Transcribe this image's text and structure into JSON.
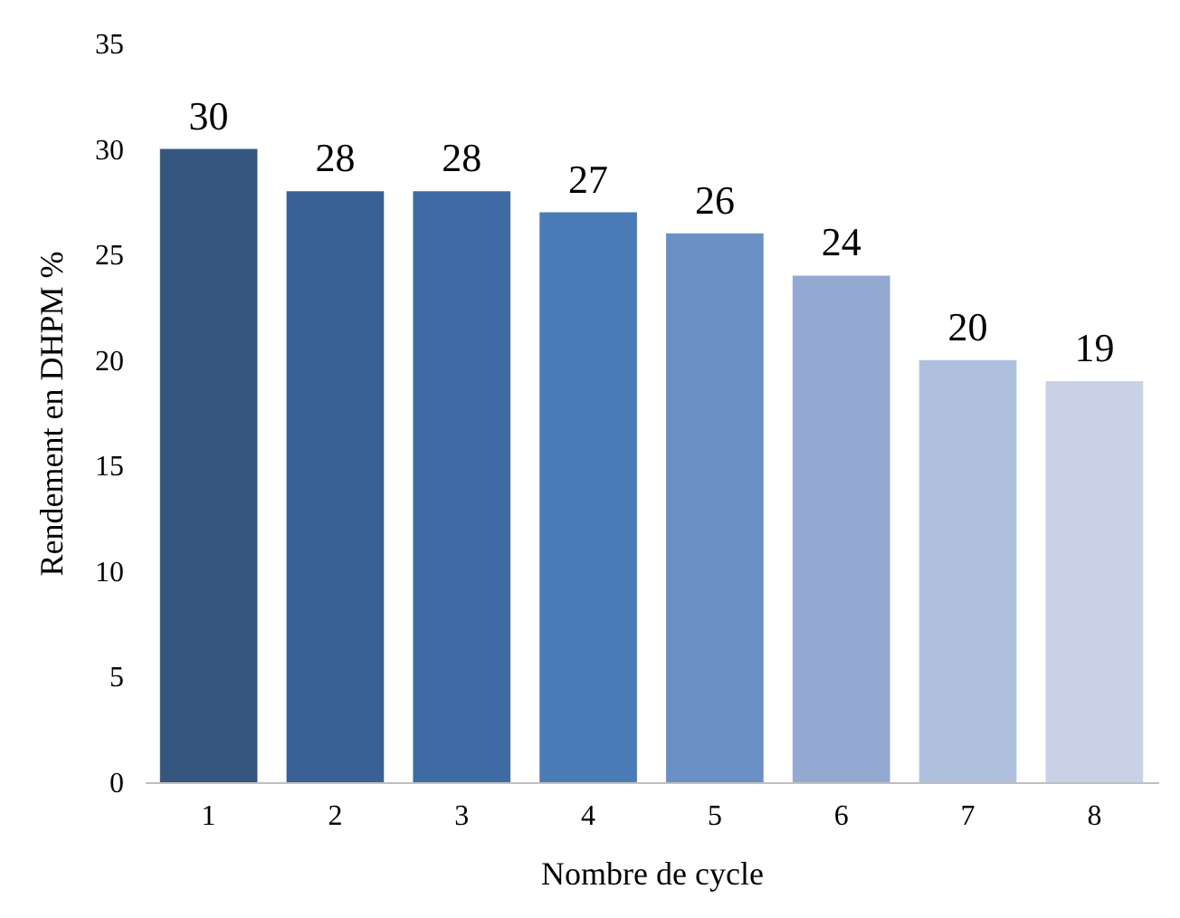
{
  "chart_data": {
    "type": "bar",
    "xlabel": "Nombre de cycle",
    "ylabel": "Rendement en DHPM %",
    "categories": [
      "1",
      "2",
      "3",
      "4",
      "5",
      "6",
      "7",
      "8"
    ],
    "values": [
      30,
      28,
      28,
      27,
      26,
      24,
      20,
      19
    ],
    "colors": [
      "#35567f",
      "#3a6196",
      "#3e6ba3",
      "#4a7bb7",
      "#6a90c5",
      "#94a9d1",
      "#afc0de",
      "#c8d1e6"
    ],
    "ylim": [
      0,
      35
    ],
    "yticks": [
      0,
      5,
      10,
      15,
      20,
      25,
      30,
      35
    ],
    "data_labels": true
  }
}
